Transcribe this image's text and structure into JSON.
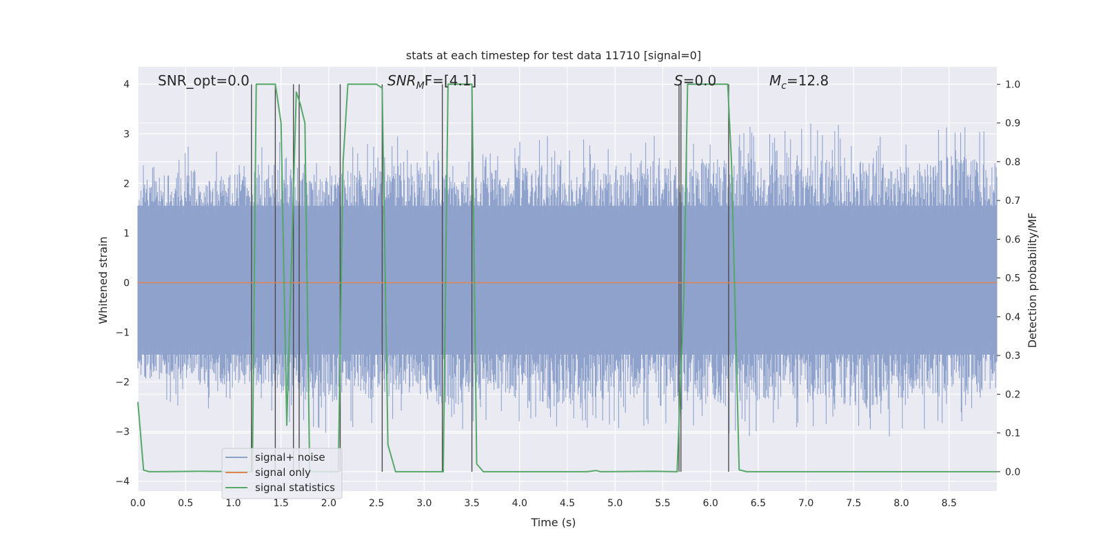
{
  "chart_data": {
    "type": "line",
    "title": "stats at each timestep for test data 11710 [signal=0]",
    "xlabel": "Time (s)",
    "ylabel_left": "Whitened strain",
    "ylabel_right": "Detection probability/MF",
    "xlim": [
      0,
      9.0
    ],
    "ylim_left": [
      -4.2,
      4.35
    ],
    "ylim_right": [
      -0.05,
      1.045
    ],
    "x_ticks": [
      "0.0",
      "0.5",
      "1.0",
      "1.5",
      "2.0",
      "2.5",
      "3.0",
      "3.5",
      "4.0",
      "4.5",
      "5.0",
      "5.5",
      "6.0",
      "6.5",
      "7.0",
      "7.5",
      "8.0",
      "8.5"
    ],
    "y_ticks_left": [
      "−4",
      "−3",
      "−2",
      "−1",
      "0",
      "1",
      "2",
      "3",
      "4"
    ],
    "y_ticks_right": [
      "0.0",
      "0.1",
      "0.2",
      "0.3",
      "0.4",
      "0.5",
      "0.6",
      "0.7",
      "0.8",
      "0.9",
      "1.0"
    ],
    "grid": true,
    "legend_position": "lower-left",
    "annotations": {
      "snr_opt": "SNR_opt=0.0",
      "snr_mf_main": "SNR",
      "snr_mf_sub": "M",
      "snr_mf_rest": "F=[4.1]",
      "s_italic": "S",
      "s_rest": "=0.0",
      "mc_main": "M",
      "mc_sub": "c",
      "mc_rest": "=12.8"
    },
    "series": [
      {
        "name": "signal+ noise",
        "color": "#8ea2cc",
        "style": "noise",
        "envelope_upper": [
          2.4,
          2.9,
          2.6,
          3.0,
          2.6,
          2.8,
          3.1,
          2.7,
          2.8,
          3.0,
          2.9,
          3.0,
          2.9,
          3.2,
          3.1,
          3.3,
          3.1,
          2.9,
          3.3,
          3.0
        ],
        "envelope_lower": [
          -2.3,
          -2.5,
          -2.6,
          -2.7,
          -3.1,
          -3.0,
          -2.8,
          -3.2,
          -2.8,
          -3.3,
          -3.0,
          -2.9,
          -3.1,
          -3.2,
          -3.0,
          -2.9,
          -3.3,
          -3.0,
          -2.9,
          -2.7
        ]
      },
      {
        "name": "signal only",
        "color": "#dd8452",
        "y_constant": 0.0
      },
      {
        "name": "signal statistics",
        "color": "#55a868",
        "x": [
          0.0,
          0.06,
          0.12,
          0.65,
          1.15,
          1.2,
          1.24,
          1.44,
          1.5,
          1.56,
          1.66,
          1.7,
          1.75,
          1.8,
          2.1,
          2.15,
          2.2,
          2.5,
          2.56,
          2.62,
          2.7,
          3.2,
          3.25,
          3.5,
          3.55,
          3.62,
          4.7,
          4.8,
          4.85,
          5.4,
          5.65,
          5.72,
          5.76,
          6.18,
          6.22,
          6.3,
          6.38,
          9.0
        ],
        "y": [
          0.18,
          0.004,
          0.0,
          0.001,
          0.0,
          0.0,
          1.0,
          1.0,
          0.9,
          0.12,
          0.98,
          0.95,
          0.9,
          0.0,
          0.0,
          0.8,
          1.0,
          1.0,
          0.99,
          0.07,
          0.0,
          0.0,
          1.0,
          1.0,
          0.02,
          0.0,
          0.0,
          0.003,
          0.0,
          0.001,
          0.0,
          0.45,
          1.0,
          1.0,
          0.8,
          0.005,
          0.0,
          0.0
        ]
      }
    ],
    "vertical_markers": {
      "color": "#4a4a4a",
      "x": [
        1.19,
        1.44,
        1.63,
        1.69,
        2.12,
        2.56,
        3.19,
        3.5,
        5.67,
        5.69,
        6.19
      ]
    }
  }
}
